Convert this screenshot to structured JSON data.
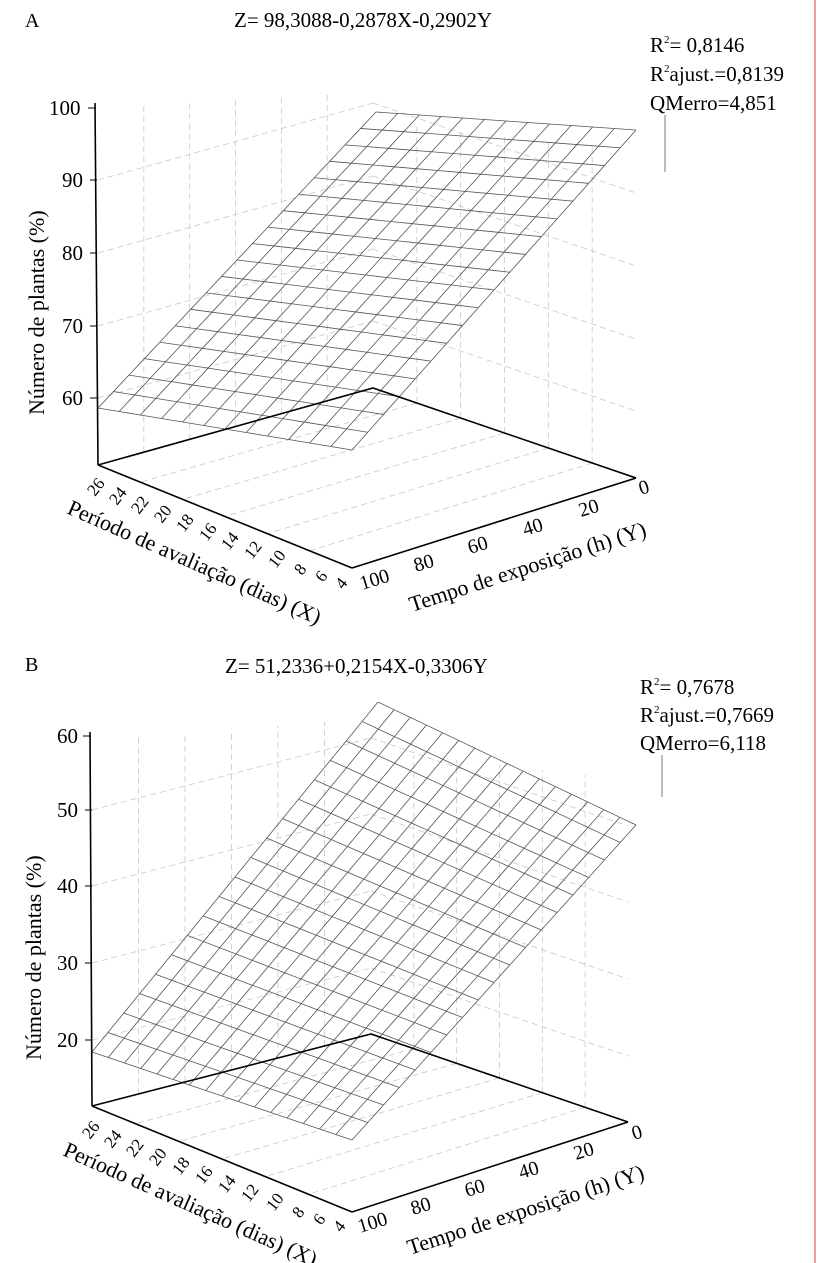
{
  "chart_data": [
    {
      "type": "surface",
      "panel_label": "A",
      "title": "Z= 98,3088-0,2878X-0,2902Y",
      "equation": {
        "intercept": 98.3088,
        "coef_x": -0.2878,
        "coef_y": -0.2902
      },
      "zlabel": "Número de plantas (%)",
      "xlabel": "Período de avaliação (dias) (X)",
      "ylabel": "Tempo de exposição (h) (Y)",
      "z_ticks": [
        "60",
        "70",
        "80",
        "90",
        "100"
      ],
      "x_ticks": [
        "26",
        "24",
        "22",
        "20",
        "18",
        "16",
        "14",
        "12",
        "10",
        "8",
        "6",
        "4"
      ],
      "y_ticks": [
        "0",
        "20",
        "40",
        "60",
        "80",
        "100"
      ],
      "stats": {
        "r2_label": "R",
        "r2_value": "= 0,8146",
        "r2adj_label": "R",
        "r2adj_value": "ajust.=0,8139",
        "qm": "QMerro=4,851",
        "sup": "2"
      },
      "grid": true
    },
    {
      "type": "surface",
      "panel_label": "B",
      "title": "Z= 51,2336+0,2154X-0,3306Y",
      "equation": {
        "intercept": 51.2336,
        "coef_x": 0.2154,
        "coef_y": -0.3306
      },
      "zlabel": "Número de plantas (%)",
      "xlabel": "Período de avaliação (dias) (X)",
      "ylabel": "Tempo de exposição (h) (Y)",
      "z_ticks": [
        "20",
        "30",
        "40",
        "50",
        "60"
      ],
      "x_ticks": [
        "26",
        "24",
        "22",
        "20",
        "18",
        "16",
        "14",
        "12",
        "10",
        "8",
        "6",
        "4"
      ],
      "y_ticks": [
        "0",
        "20",
        "40",
        "60",
        "80",
        "100"
      ],
      "stats": {
        "r2_label": "R",
        "r2_value": "= 0,7678",
        "r2adj_label": "R",
        "r2adj_value": "ajust.=0,7669",
        "qm": "QMerro=6,118",
        "sup": "2"
      },
      "grid": true
    }
  ],
  "colors": {
    "mesh": "#555555",
    "grid": "#c8c8c8",
    "axis": "#000000",
    "edge_line": "#e06060"
  }
}
